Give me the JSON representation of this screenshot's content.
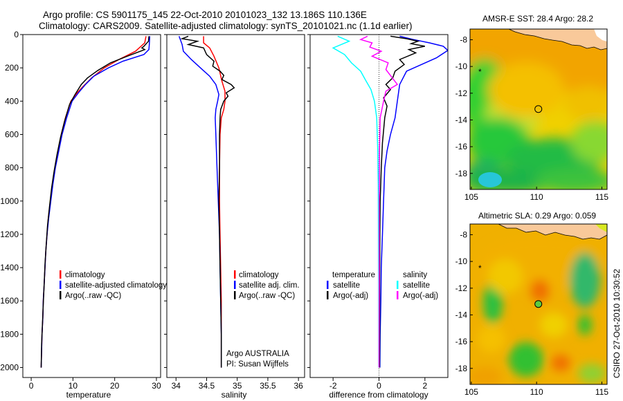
{
  "header": {
    "line1": "Argo profile: CS 5901175_145 22-Oct-2010 20101023_132 13.186S 110.136E",
    "line2": "Climatology: CARS2009. Satellite-adjusted climatology: synTS_20101021.nc (1.1d earlier)"
  },
  "credit": "CSIRO 27-Oct-2010 10:30:52",
  "colors": {
    "climatology": "#ff0000",
    "satellite": "#0000ff",
    "argo": "#000000",
    "salinity_satellite": "#00ffff",
    "salinity_argo": "#ff00ff"
  },
  "chart_data": [
    {
      "type": "line",
      "id": "temperature",
      "xlabel": "temperature",
      "xlim": [
        -2,
        31
      ],
      "xticks": [
        0,
        10,
        20,
        30
      ],
      "ylim": [
        2060,
        0
      ],
      "yticks": [
        0,
        200,
        400,
        600,
        800,
        1000,
        1200,
        1400,
        1600,
        1800,
        2000
      ],
      "legend": [
        "climatology",
        "satellite-adjusted climatology",
        "Argo(..raw -QC)"
      ],
      "series": [
        {
          "name": "climatology",
          "color": "#ff0000",
          "points": [
            [
              27.5,
              10
            ],
            [
              27.2,
              50
            ],
            [
              25,
              100
            ],
            [
              21,
              150
            ],
            [
              17.5,
              200
            ],
            [
              14.5,
              260
            ],
            [
              12.5,
              310
            ],
            [
              11,
              350
            ],
            [
              9.5,
              400
            ],
            [
              8.2,
              500
            ],
            [
              7.2,
              600
            ],
            [
              6.5,
              700
            ],
            [
              5.7,
              800
            ],
            [
              5.1,
              900
            ],
            [
              4.6,
              1000
            ],
            [
              4.1,
              1100
            ],
            [
              3.8,
              1200
            ],
            [
              3.5,
              1300
            ],
            [
              3.3,
              1400
            ],
            [
              3.1,
              1500
            ],
            [
              2.9,
              1600
            ],
            [
              2.8,
              1700
            ],
            [
              2.6,
              1800
            ],
            [
              2.5,
              1900
            ],
            [
              2.4,
              2000
            ]
          ]
        },
        {
          "name": "satellite-adjusted climatology",
          "color": "#0000ff",
          "points": [
            [
              28.4,
              10
            ],
            [
              28.3,
              60
            ],
            [
              28.2,
              90
            ],
            [
              27,
              120
            ],
            [
              22,
              160
            ],
            [
              18.5,
              200
            ],
            [
              15,
              250
            ],
            [
              13,
              300
            ],
            [
              11.3,
              350
            ],
            [
              9.8,
              400
            ],
            [
              8.5,
              500
            ],
            [
              7.4,
              600
            ],
            [
              6.6,
              700
            ],
            [
              5.8,
              800
            ],
            [
              5.2,
              900
            ],
            [
              4.7,
              1000
            ],
            [
              4.2,
              1100
            ],
            [
              3.8,
              1200
            ],
            [
              3.5,
              1300
            ],
            [
              3.3,
              1400
            ],
            [
              3.1,
              1500
            ],
            [
              2.9,
              1600
            ],
            [
              2.8,
              1700
            ],
            [
              2.6,
              1800
            ],
            [
              2.5,
              1900
            ],
            [
              2.4,
              2000
            ]
          ]
        },
        {
          "name": "Argo(..raw -QC)",
          "color": "#000000",
          "points": [
            [
              28.2,
              10
            ],
            [
              28.1,
              40
            ],
            [
              27,
              70
            ],
            [
              26.5,
              80
            ],
            [
              27.2,
              90
            ],
            [
              23,
              130
            ],
            [
              19,
              170
            ],
            [
              16,
              215
            ],
            [
              13.5,
              260
            ],
            [
              12,
              300
            ],
            [
              10.5,
              360
            ],
            [
              9.2,
              420
            ],
            [
              8,
              520
            ],
            [
              7,
              620
            ],
            [
              6.2,
              720
            ],
            [
              5.5,
              820
            ],
            [
              4.9,
              920
            ],
            [
              4.4,
              1030
            ],
            [
              3.9,
              1150
            ],
            [
              3.6,
              1260
            ],
            [
              3.3,
              1380
            ],
            [
              3.1,
              1500
            ],
            [
              2.9,
              1620
            ],
            [
              2.7,
              1740
            ],
            [
              2.5,
              1860
            ],
            [
              2.4,
              2000
            ]
          ]
        }
      ]
    },
    {
      "type": "line",
      "id": "salinity",
      "xlabel": "salinity",
      "xlim": [
        33.85,
        36.1
      ],
      "xticks": [
        34,
        34.5,
        35,
        35.5,
        36
      ],
      "ylim": [
        2060,
        0
      ],
      "legend": [
        "climatology",
        "satellite adj. clim.",
        "Argo(..raw -QC)"
      ],
      "annotation": [
        "Argo AUSTRALIA",
        "PI: Susan Wijffels"
      ],
      "series": [
        {
          "name": "climatology",
          "color": "#ff0000",
          "points": [
            [
              34.45,
              10
            ],
            [
              34.45,
              50
            ],
            [
              34.55,
              80
            ],
            [
              34.62,
              130
            ],
            [
              34.7,
              200
            ],
            [
              34.75,
              280
            ],
            [
              34.8,
              340
            ],
            [
              34.8,
              400
            ],
            [
              34.78,
              450
            ],
            [
              34.74,
              500
            ],
            [
              34.72,
              600
            ],
            [
              34.71,
              800
            ],
            [
              34.71,
              1000
            ],
            [
              34.72,
              1200
            ],
            [
              34.73,
              1400
            ],
            [
              34.74,
              1600
            ],
            [
              34.74,
              1800
            ],
            [
              34.74,
              2000
            ]
          ]
        },
        {
          "name": "satellite adj. clim.",
          "color": "#0000ff",
          "points": [
            [
              34.05,
              10
            ],
            [
              34.1,
              60
            ],
            [
              34.12,
              100
            ],
            [
              34.25,
              150
            ],
            [
              34.4,
              200
            ],
            [
              34.55,
              250
            ],
            [
              34.65,
              300
            ],
            [
              34.7,
              360
            ],
            [
              34.68,
              400
            ],
            [
              34.65,
              450
            ],
            [
              34.64,
              500
            ],
            [
              34.65,
              600
            ],
            [
              34.67,
              800
            ],
            [
              34.69,
              1000
            ],
            [
              34.71,
              1200
            ],
            [
              34.72,
              1400
            ],
            [
              34.73,
              1600
            ],
            [
              34.74,
              1800
            ],
            [
              34.74,
              2000
            ]
          ]
        },
        {
          "name": "Argo(..raw -QC)",
          "color": "#000000",
          "points": [
            [
              34.2,
              10
            ],
            [
              34.1,
              25
            ],
            [
              34.35,
              40
            ],
            [
              34.2,
              60
            ],
            [
              34.45,
              80
            ],
            [
              34.5,
              120
            ],
            [
              34.62,
              160
            ],
            [
              34.6,
              190
            ],
            [
              34.72,
              220
            ],
            [
              34.78,
              245
            ],
            [
              34.75,
              270
            ],
            [
              34.9,
              300
            ],
            [
              34.95,
              320
            ],
            [
              34.82,
              350
            ],
            [
              34.85,
              370
            ],
            [
              34.78,
              400
            ],
            [
              34.73,
              450
            ],
            [
              34.72,
              500
            ],
            [
              34.71,
              600
            ],
            [
              34.71,
              800
            ],
            [
              34.7,
              1000
            ],
            [
              34.71,
              1200
            ],
            [
              34.72,
              1400
            ],
            [
              34.73,
              1600
            ],
            [
              34.74,
              1800
            ],
            [
              34.74,
              2000
            ]
          ]
        }
      ]
    },
    {
      "type": "line",
      "id": "difference",
      "xlabel": "difference from climatology",
      "xlim": [
        -3,
        3
      ],
      "xticks": [
        -2,
        0,
        2
      ],
      "ylim": [
        2060,
        0
      ],
      "legend_left_title": "temperature",
      "legend_left": [
        "satellite",
        "Argo(-adj)"
      ],
      "legend_right_title": "salinity",
      "legend_right": [
        "satellite",
        "Argo(-adj)"
      ],
      "series": [
        {
          "name": "temperature satellite",
          "color": "#0000ff",
          "points": [
            [
              0.9,
              10
            ],
            [
              1.5,
              30
            ],
            [
              2.2,
              50
            ],
            [
              2.8,
              70
            ],
            [
              3,
              95
            ],
            [
              2.5,
              140
            ],
            [
              1.2,
              220
            ],
            [
              0.9,
              300
            ],
            [
              0.8,
              400
            ],
            [
              0.7,
              500
            ],
            [
              0.5,
              600
            ],
            [
              0.35,
              700
            ],
            [
              0.25,
              800
            ],
            [
              0.2,
              1000
            ],
            [
              0.15,
              1200
            ],
            [
              0.1,
              1400
            ],
            [
              0.08,
              1600
            ],
            [
              0.05,
              1800
            ],
            [
              0.04,
              2000
            ]
          ]
        },
        {
          "name": "temperature Argo(-adj)",
          "color": "#000000",
          "points": [
            [
              0.5,
              10
            ],
            [
              1.2,
              25
            ],
            [
              1.7,
              40
            ],
            [
              1.4,
              55
            ],
            [
              2,
              70
            ],
            [
              1.3,
              90
            ],
            [
              1.6,
              110
            ],
            [
              0.9,
              150
            ],
            [
              1.1,
              180
            ],
            [
              0.7,
              220
            ],
            [
              0.6,
              260
            ],
            [
              0.3,
              300
            ],
            [
              0.5,
              330
            ],
            [
              0.2,
              380
            ],
            [
              0.35,
              430
            ],
            [
              0.25,
              500
            ],
            [
              0.15,
              650
            ],
            [
              0.1,
              800
            ],
            [
              0.05,
              1000
            ],
            [
              0.04,
              1200
            ],
            [
              0.03,
              1500
            ],
            [
              0.03,
              1800
            ],
            [
              0.02,
              2000
            ]
          ]
        },
        {
          "name": "salinity satellite",
          "color": "#00ffff",
          "points": [
            [
              -1.8,
              10
            ],
            [
              -1.3,
              40
            ],
            [
              -2,
              80
            ],
            [
              -1.5,
              120
            ],
            [
              -1.2,
              170
            ],
            [
              -0.8,
              220
            ],
            [
              -0.6,
              270
            ],
            [
              -0.35,
              330
            ],
            [
              -0.2,
              400
            ],
            [
              -0.1,
              500
            ],
            [
              -0.05,
              700
            ],
            [
              -0.03,
              900
            ],
            [
              -0.02,
              1200
            ],
            [
              -0.01,
              1500
            ],
            [
              -0.01,
              2000
            ]
          ]
        },
        {
          "name": "salinity Argo(-adj)",
          "color": "#ff00ff",
          "points": [
            [
              -0.5,
              10
            ],
            [
              -0.8,
              30
            ],
            [
              -0.3,
              50
            ],
            [
              -0.4,
              75
            ],
            [
              0.1,
              100
            ],
            [
              -0.3,
              130
            ],
            [
              0.4,
              170
            ],
            [
              0.3,
              210
            ],
            [
              0.8,
              300
            ],
            [
              0.3,
              340
            ],
            [
              0.2,
              400
            ],
            [
              0.05,
              500
            ],
            [
              0.02,
              700
            ],
            [
              0.01,
              1000
            ],
            [
              0.01,
              1500
            ],
            [
              0,
              2000
            ]
          ]
        }
      ]
    },
    {
      "type": "heatmap",
      "id": "sst-map",
      "title": "AMSR-E SST: 28.4 Argo: 28.2",
      "xticks": [
        105,
        110,
        115
      ],
      "yticks": [
        -8,
        -10,
        -12,
        -14,
        -16,
        -18
      ],
      "xlim": [
        104.9,
        115.4
      ],
      "ylim": [
        -19.2,
        -7.2
      ],
      "argo_position": [
        110.136,
        -13.186
      ]
    },
    {
      "type": "heatmap",
      "id": "sla-map",
      "title": "Altimetric SLA: 0.29 Argo: 0.059",
      "xticks": [
        105,
        110,
        115
      ],
      "yticks": [
        -8,
        -10,
        -12,
        -14,
        -16,
        -18
      ],
      "xlim": [
        104.9,
        115.4
      ],
      "ylim": [
        -19.2,
        -7.2
      ],
      "argo_position": [
        110.136,
        -13.186
      ]
    }
  ]
}
